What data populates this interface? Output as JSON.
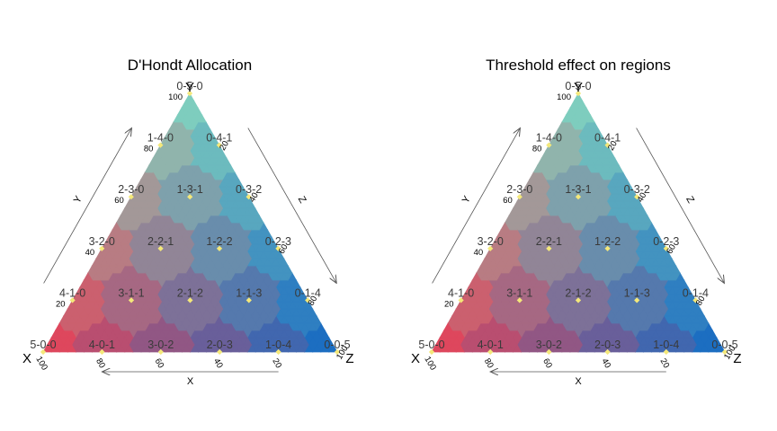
{
  "chart_data": [
    {
      "type": "ternary",
      "title": "D'Hondt Allocation",
      "corner_labels": {
        "left": "X",
        "top": "Y",
        "right": "Z"
      },
      "axis_labels": {
        "x": "X",
        "y": "Y",
        "z": "Z"
      },
      "ticks": [
        "20",
        "40",
        "60",
        "80",
        "100"
      ],
      "colors": {
        "X": "#f03c50",
        "Y": "#7edcc4",
        "Z": "#0a6ac8"
      },
      "regions": [
        {
          "label": "0-5-0",
          "x": 0,
          "y": 5,
          "z": 0
        },
        {
          "label": "1-4-0",
          "x": 1,
          "y": 4,
          "z": 0
        },
        {
          "label": "0-4-1",
          "x": 0,
          "y": 4,
          "z": 1
        },
        {
          "label": "2-3-0",
          "x": 2,
          "y": 3,
          "z": 0
        },
        {
          "label": "1-3-1",
          "x": 1,
          "y": 3,
          "z": 1
        },
        {
          "label": "0-3-2",
          "x": 0,
          "y": 3,
          "z": 2
        },
        {
          "label": "3-2-0",
          "x": 3,
          "y": 2,
          "z": 0
        },
        {
          "label": "2-2-1",
          "x": 2,
          "y": 2,
          "z": 1
        },
        {
          "label": "1-2-2",
          "x": 1,
          "y": 2,
          "z": 2
        },
        {
          "label": "0-2-3",
          "x": 0,
          "y": 2,
          "z": 3
        },
        {
          "label": "4-1-0",
          "x": 4,
          "y": 1,
          "z": 0
        },
        {
          "label": "3-1-1",
          "x": 3,
          "y": 1,
          "z": 1
        },
        {
          "label": "2-1-2",
          "x": 2,
          "y": 1,
          "z": 2
        },
        {
          "label": "1-1-3",
          "x": 1,
          "y": 1,
          "z": 3
        },
        {
          "label": "0-1-4",
          "x": 0,
          "y": 1,
          "z": 4
        },
        {
          "label": "5-0-0",
          "x": 5,
          "y": 0,
          "z": 0
        },
        {
          "label": "4-0-1",
          "x": 4,
          "y": 0,
          "z": 1
        },
        {
          "label": "3-0-2",
          "x": 3,
          "y": 0,
          "z": 2
        },
        {
          "label": "2-0-3",
          "x": 2,
          "y": 0,
          "z": 3
        },
        {
          "label": "1-0-4",
          "x": 1,
          "y": 0,
          "z": 4
        },
        {
          "label": "0-0-5",
          "x": 0,
          "y": 0,
          "z": 5
        }
      ]
    },
    {
      "type": "ternary",
      "title": "Threshold effect on regions",
      "corner_labels": {
        "left": "X",
        "top": "Y",
        "right": "Z"
      },
      "axis_labels": {
        "x": "X",
        "y": "Y",
        "z": "Z"
      },
      "ticks": [
        "20",
        "40",
        "60",
        "80",
        "100"
      ],
      "colors": {
        "X": "#f03c50",
        "Y": "#7edcc4",
        "Z": "#0a6ac8"
      },
      "regions": [
        {
          "label": "0-5-0",
          "x": 0,
          "y": 5,
          "z": 0
        },
        {
          "label": "1-4-0",
          "x": 1,
          "y": 4,
          "z": 0
        },
        {
          "label": "0-4-1",
          "x": 0,
          "y": 4,
          "z": 1
        },
        {
          "label": "2-3-0",
          "x": 2,
          "y": 3,
          "z": 0
        },
        {
          "label": "1-3-1",
          "x": 1,
          "y": 3,
          "z": 1
        },
        {
          "label": "0-3-2",
          "x": 0,
          "y": 3,
          "z": 2
        },
        {
          "label": "3-2-0",
          "x": 3,
          "y": 2,
          "z": 0
        },
        {
          "label": "2-2-1",
          "x": 2,
          "y": 2,
          "z": 1
        },
        {
          "label": "1-2-2",
          "x": 1,
          "y": 2,
          "z": 2
        },
        {
          "label": "0-2-3",
          "x": 0,
          "y": 2,
          "z": 3
        },
        {
          "label": "4-1-0",
          "x": 4,
          "y": 1,
          "z": 0
        },
        {
          "label": "3-1-1",
          "x": 3,
          "y": 1,
          "z": 1
        },
        {
          "label": "2-1-2",
          "x": 2,
          "y": 1,
          "z": 2
        },
        {
          "label": "1-1-3",
          "x": 1,
          "y": 1,
          "z": 3
        },
        {
          "label": "0-1-4",
          "x": 0,
          "y": 1,
          "z": 4
        },
        {
          "label": "5-0-0",
          "x": 5,
          "y": 0,
          "z": 0
        },
        {
          "label": "4-0-1",
          "x": 4,
          "y": 0,
          "z": 1
        },
        {
          "label": "3-0-2",
          "x": 3,
          "y": 0,
          "z": 2
        },
        {
          "label": "2-0-3",
          "x": 2,
          "y": 0,
          "z": 3
        },
        {
          "label": "1-0-4",
          "x": 1,
          "y": 0,
          "z": 4
        },
        {
          "label": "0-0-5",
          "x": 0,
          "y": 0,
          "z": 5
        }
      ]
    }
  ]
}
